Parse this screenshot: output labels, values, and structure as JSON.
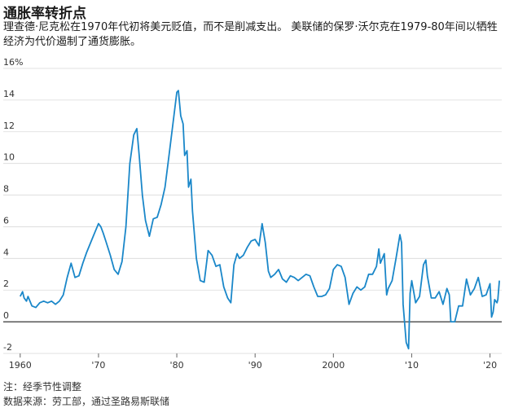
{
  "header": {
    "title": "通胀率转折点",
    "subtitle": "理查德·尼克松在1970年代初将美元贬值，而不是削减支出。 美联储的保罗·沃尔克在1979-80年间以牺牲经济为代价遏制了通货膨胀。"
  },
  "footer": {
    "note": "注：经季节性调整",
    "source": "数据来源：劳工部，通过圣路易斯联储"
  },
  "colors": {
    "line": "#1a87c9",
    "grid": "#d9d9d9",
    "zero": "#000000",
    "text": "#333333"
  },
  "chart_data": {
    "type": "line",
    "ylim": [
      -2,
      16
    ],
    "xlim": [
      1959.5,
      2021.5
    ],
    "y_ticks": [
      -2,
      0,
      2,
      4,
      6,
      8,
      10,
      12,
      14,
      16
    ],
    "y_tick_labels": [
      "-2",
      "0",
      "2",
      "4",
      "6",
      "8",
      "10",
      "12",
      "14",
      "16%"
    ],
    "x_ticks": [
      1960,
      1970,
      1980,
      1990,
      2000,
      2010,
      2020
    ],
    "x_tick_labels": [
      "1960",
      "'70",
      "'80",
      "'90",
      "2000",
      "'10",
      "'20"
    ],
    "grid": true,
    "series": [
      {
        "x": [
          1960.0,
          1960.3,
          1960.5,
          1960.8,
          1961.0,
          1961.5,
          1962.0,
          1962.5,
          1963.0,
          1963.5,
          1964.0,
          1964.5,
          1965.0,
          1965.5,
          1966.0,
          1966.5,
          1967.0,
          1967.5,
          1968.0,
          1968.5,
          1969.0,
          1969.5,
          1970.0,
          1970.3,
          1970.6,
          1971.0,
          1971.5,
          1972.0,
          1972.5,
          1973.0,
          1973.5,
          1974.0,
          1974.5,
          1974.9,
          1975.2,
          1975.6,
          1976.0,
          1976.5,
          1977.0,
          1977.5,
          1978.0,
          1978.5,
          1979.0,
          1979.5,
          1980.0,
          1980.2,
          1980.5,
          1980.8,
          1981.0,
          1981.3,
          1981.5,
          1981.8,
          1982.0,
          1982.5,
          1983.0,
          1983.5,
          1984.0,
          1984.5,
          1985.0,
          1985.5,
          1986.0,
          1986.5,
          1986.9,
          1987.3,
          1987.7,
          1988.0,
          1988.5,
          1989.0,
          1989.5,
          1990.0,
          1990.5,
          1990.9,
          1991.3,
          1991.7,
          1992.0,
          1992.5,
          1993.0,
          1993.5,
          1994.0,
          1994.5,
          1995.0,
          1995.5,
          1996.0,
          1996.5,
          1997.0,
          1997.5,
          1998.0,
          1998.5,
          1999.0,
          1999.5,
          2000.0,
          2000.5,
          2001.0,
          2001.5,
          2002.0,
          2002.5,
          2003.0,
          2003.5,
          2004.0,
          2004.5,
          2005.0,
          2005.5,
          2005.8,
          2006.0,
          2006.5,
          2006.8,
          2007.0,
          2007.5,
          2008.0,
          2008.3,
          2008.5,
          2008.7,
          2008.9,
          2009.1,
          2009.3,
          2009.6,
          2009.8,
          2010.0,
          2010.5,
          2011.0,
          2011.5,
          2011.8,
          2012.0,
          2012.5,
          2013.0,
          2013.5,
          2014.0,
          2014.5,
          2014.8,
          2015.0,
          2015.5,
          2016.0,
          2016.5,
          2017.0,
          2017.5,
          2018.0,
          2018.5,
          2019.0,
          2019.5,
          2020.0,
          2020.2,
          2020.4,
          2020.6,
          2020.9,
          2021.0,
          2021.2
        ],
        "y": [
          1.6,
          1.9,
          1.5,
          1.3,
          1.6,
          1.0,
          0.9,
          1.2,
          1.3,
          1.2,
          1.3,
          1.1,
          1.3,
          1.7,
          2.8,
          3.7,
          2.8,
          2.9,
          3.7,
          4.4,
          5.0,
          5.6,
          6.2,
          6.0,
          5.6,
          5.0,
          4.2,
          3.3,
          3.0,
          3.8,
          6.0,
          10.0,
          11.8,
          12.2,
          10.5,
          8.0,
          6.4,
          5.4,
          6.5,
          6.6,
          7.4,
          8.5,
          10.5,
          12.5,
          14.5,
          14.6,
          13.0,
          12.5,
          10.5,
          10.8,
          8.5,
          9.0,
          7.0,
          4.0,
          2.6,
          2.5,
          4.5,
          4.2,
          3.5,
          3.6,
          2.2,
          1.5,
          1.2,
          3.6,
          4.3,
          4.0,
          4.2,
          4.7,
          5.1,
          5.2,
          4.8,
          6.2,
          5.0,
          3.2,
          2.8,
          3.0,
          3.3,
          2.7,
          2.5,
          2.9,
          2.8,
          2.6,
          2.8,
          3.0,
          2.9,
          2.2,
          1.6,
          1.6,
          1.7,
          2.1,
          3.3,
          3.6,
          3.5,
          2.8,
          1.1,
          1.8,
          2.2,
          2.0,
          2.2,
          3.0,
          3.0,
          3.5,
          4.6,
          3.7,
          4.3,
          1.7,
          2.1,
          2.6,
          4.0,
          4.9,
          5.5,
          5.0,
          1.1,
          -0.1,
          -1.3,
          -1.7,
          1.8,
          2.6,
          1.2,
          1.6,
          3.6,
          3.9,
          2.9,
          1.5,
          1.5,
          1.9,
          1.1,
          2.1,
          1.7,
          0.0,
          0.0,
          1.0,
          1.0,
          2.7,
          1.7,
          2.1,
          2.8,
          1.6,
          1.7,
          2.4,
          0.3,
          0.6,
          1.4,
          1.2,
          1.4,
          2.6
        ]
      }
    ]
  }
}
